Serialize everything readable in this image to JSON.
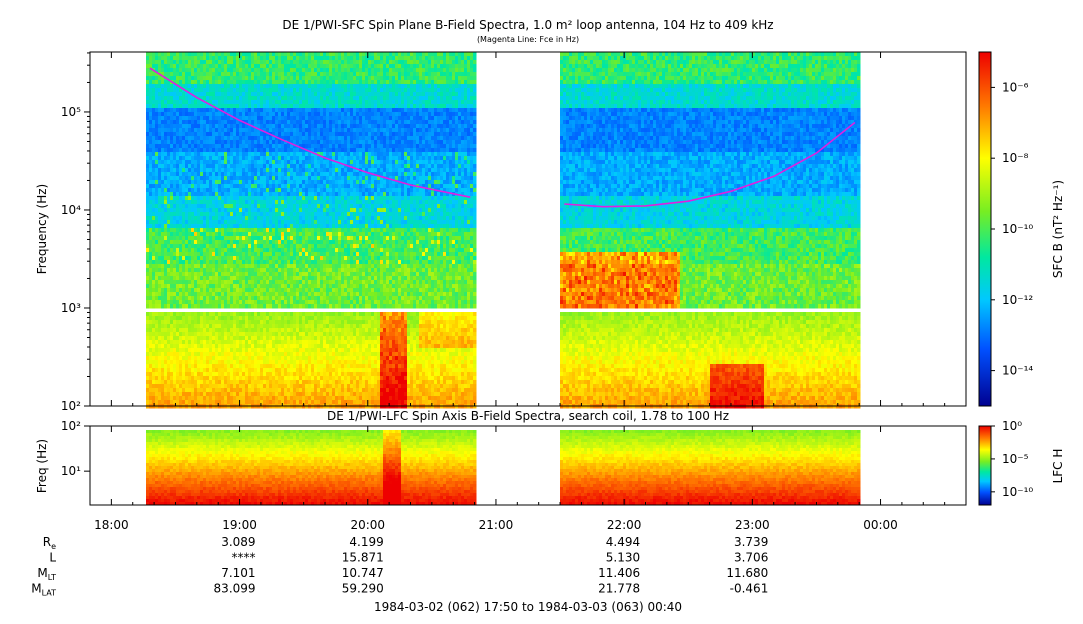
{
  "chart_data": [
    {
      "type": "heatmap",
      "title": "DE 1/PWI-SFC  Spin Plane B-Field Spectra, 1.0 m² loop antenna, 104 Hz to 409 kHz",
      "subtitle": "(Magenta Line: Fce in Hz)",
      "ylabel": "Frequency (Hz)",
      "yscale": "log",
      "ylim": [
        100,
        409000
      ],
      "y_tick_labels": [
        "10²",
        "10³",
        "10⁴",
        "10⁵"
      ],
      "y_tick_values": [
        100,
        1000,
        10000,
        100000
      ],
      "colorbar_label": "SFC B (nT² Hz⁻¹)",
      "colorbar_range": [
        1e-15,
        1e-05
      ],
      "colorbar_tick_labels": [
        "10⁻⁶",
        "10⁻⁸",
        "10⁻¹⁰",
        "10⁻¹²",
        "10⁻¹⁴"
      ],
      "colorbar_tick_values": [
        1e-06,
        1e-08,
        1e-10,
        1e-12,
        1e-14
      ],
      "data_intervals": [
        [
          "18:16",
          "20:50"
        ],
        [
          "21:30",
          "23:50"
        ]
      ],
      "fce_line": {
        "color": "#e020e0",
        "segment1": {
          "time": [
            "18:18",
            "18:40",
            "19:00",
            "19:20",
            "19:40",
            "20:00",
            "20:20",
            "20:48"
          ],
          "freq_hz": [
            280000,
            140000,
            82000,
            52000,
            34000,
            24000,
            18000,
            13500
          ]
        },
        "segment2": {
          "time": [
            "21:32",
            "21:50",
            "22:10",
            "22:30",
            "22:50",
            "23:10",
            "23:30",
            "23:48"
          ],
          "freq_hz": [
            11500,
            10800,
            11000,
            12300,
            15500,
            22000,
            38000,
            78000
          ]
        }
      }
    },
    {
      "type": "heatmap",
      "title": "DE 1/PWI-LFC  Spin Axis B-Field Spectra, search coil, 1.78 to 100 Hz",
      "ylabel": "Freq (Hz)",
      "yscale": "log",
      "ylim": [
        1.78,
        100
      ],
      "y_tick_labels": [
        "10¹",
        "10²"
      ],
      "y_tick_values": [
        10,
        100
      ],
      "colorbar_label": "LFC H",
      "colorbar_range": [
        1e-12,
        1
      ],
      "colorbar_tick_labels": [
        "10⁰",
        "10⁻⁵",
        "10⁻¹⁰"
      ],
      "colorbar_tick_values": [
        1,
        1e-05,
        1e-10
      ],
      "data_intervals": [
        [
          "18:16",
          "20:50"
        ],
        [
          "21:30",
          "23:50"
        ]
      ]
    }
  ],
  "x_axis": {
    "range": [
      "17:50",
      "00:40"
    ],
    "tick_labels": [
      "18:00",
      "19:00",
      "20:00",
      "21:00",
      "22:00",
      "23:00",
      "00:00"
    ]
  },
  "ephemeris": {
    "rows": [
      {
        "label": "R",
        "sub": "e",
        "values": [
          "3.089",
          "4.199",
          "",
          "4.494",
          "3.739"
        ]
      },
      {
        "label": "L",
        "sub": "",
        "values": [
          "****",
          "15.871",
          "",
          "5.130",
          "3.706"
        ]
      },
      {
        "label": "M",
        "sub": "LT",
        "values": [
          "7.101",
          "10.747",
          "",
          "11.406",
          "11.680"
        ]
      },
      {
        "label": "M",
        "sub": "LAT",
        "values": [
          "83.099",
          "59.290",
          "",
          "21.778",
          "-0.461"
        ]
      }
    ],
    "footer": "1984-03-02 (062) 17:50 to 1984-03-03 (063) 00:40"
  }
}
